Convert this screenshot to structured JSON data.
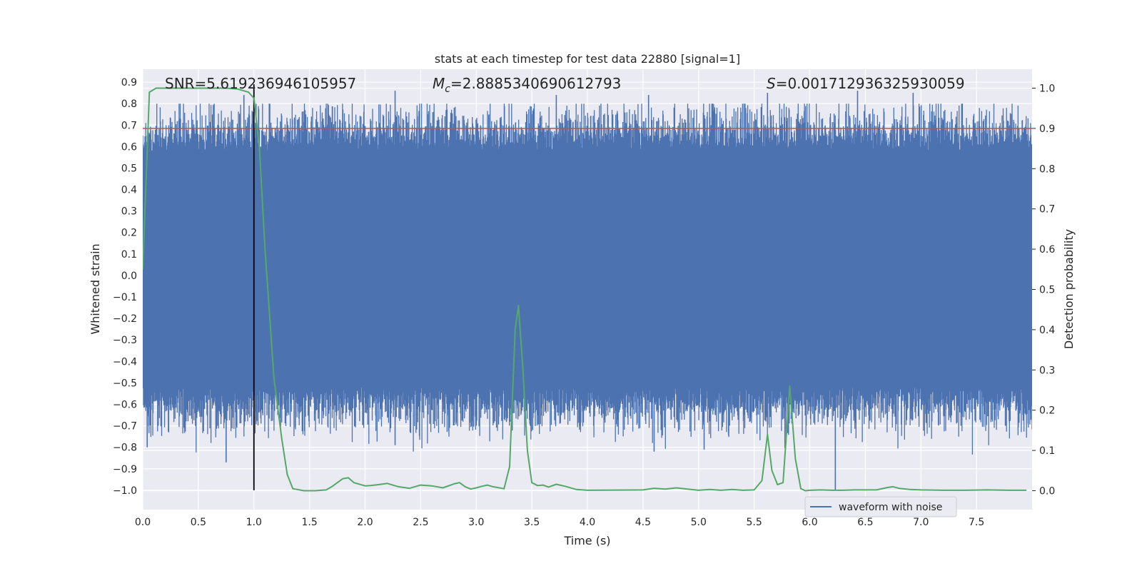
{
  "chart_data": {
    "type": "line",
    "title": "stats at each timestep for test data 22880 [signal=1]",
    "xlabel": "Time (s)",
    "ylabel": "Whitened strain",
    "y2label": "Detection probability",
    "xlim": [
      0.0,
      8.0
    ],
    "ylim": [
      -1.09,
      0.96
    ],
    "y2lim": [
      -0.047,
      1.047
    ],
    "xticks": [
      0.0,
      0.5,
      1.0,
      1.5,
      2.0,
      2.5,
      3.0,
      3.5,
      4.0,
      4.5,
      5.0,
      5.5,
      6.0,
      6.5,
      7.0,
      7.5
    ],
    "xtick_labels": [
      "0.0",
      "0.5",
      "1.0",
      "1.5",
      "2.0",
      "2.5",
      "3.0",
      "3.5",
      "4.0",
      "4.5",
      "5.0",
      "5.5",
      "6.0",
      "6.5",
      "7.0",
      "7.5"
    ],
    "yticks": [
      0.9,
      0.8,
      0.7,
      0.6,
      0.5,
      0.4,
      0.3,
      0.2,
      0.1,
      0.0,
      -0.1,
      -0.2,
      -0.3,
      -0.4,
      -0.5,
      -0.6,
      -0.7,
      -0.8,
      -0.9,
      -1.0
    ],
    "ytick_labels": [
      "0.9",
      "0.8",
      "0.7",
      "0.6",
      "0.5",
      "0.4",
      "0.3",
      "0.2",
      "0.1",
      "0.0",
      "−0.1",
      "−0.2",
      "−0.3",
      "−0.4",
      "−0.5",
      "−0.6",
      "−0.7",
      "−0.8",
      "−0.9",
      "−1.0"
    ],
    "y2ticks": [
      1.0,
      0.9,
      0.8,
      0.7,
      0.6,
      0.5,
      0.4,
      0.3,
      0.2,
      0.1,
      0.0
    ],
    "y2tick_labels": [
      "1.0",
      "0.9",
      "0.8",
      "0.7",
      "0.6",
      "0.5",
      "0.4",
      "0.3",
      "0.2",
      "0.1",
      "0.0"
    ],
    "grid": true,
    "legend_position": "bottom-right",
    "annotations": {
      "snr": "SNR=5.619236946105957",
      "mc_symbol": "M",
      "mc_sub": "c",
      "mc_value": "=2.8885340690612793",
      "s_symbol": "S",
      "s_value": "=0.001712936325930059"
    },
    "series": [
      {
        "name": "waveform with noise",
        "axis": "left",
        "color": "#4c72b0",
        "band": {
          "core_low": -0.52,
          "core_high": 0.58,
          "amplitude_sigma": 0.19
        },
        "spikes": [
          {
            "x": 0.75,
            "y": -0.87
          },
          {
            "x": 0.91,
            "y": 0.84
          },
          {
            "x": 0.92,
            "y": -0.68
          },
          {
            "x": 1.0,
            "y": 0.82
          },
          {
            "x": 2.27,
            "y": 0.86
          },
          {
            "x": 2.27,
            "y": -0.79
          },
          {
            "x": 3.72,
            "y": 0.84
          },
          {
            "x": 4.55,
            "y": 0.84
          },
          {
            "x": 4.6,
            "y": -0.82
          },
          {
            "x": 5.05,
            "y": -0.81
          },
          {
            "x": 5.62,
            "y": 0.85
          },
          {
            "x": 6.23,
            "y": -1.0
          },
          {
            "x": 6.43,
            "y": 0.86
          },
          {
            "x": 6.93,
            "y": 0.85
          },
          {
            "x": 7.8,
            "y": 0.7
          },
          {
            "x": 7.76,
            "y": -0.7
          },
          {
            "x": 0.04,
            "y": -0.8
          }
        ]
      },
      {
        "name": "",
        "axis": "right",
        "color": "#55a868",
        "x": [
          0.0,
          0.06,
          0.12,
          0.2,
          0.4,
          0.6,
          0.75,
          0.85,
          0.95,
          1.0,
          1.05,
          1.1,
          1.18,
          1.25,
          1.3,
          1.35,
          1.45,
          1.55,
          1.65,
          1.7,
          1.8,
          1.85,
          1.9,
          2.0,
          2.05,
          2.12,
          2.2,
          2.3,
          2.4,
          2.5,
          2.6,
          2.7,
          2.8,
          2.85,
          2.9,
          2.95,
          3.0,
          3.05,
          3.1,
          3.15,
          3.25,
          3.3,
          3.35,
          3.38,
          3.42,
          3.46,
          3.5,
          3.55,
          3.6,
          3.65,
          3.72,
          3.8,
          3.9,
          4.0,
          4.5,
          4.6,
          4.7,
          4.8,
          4.9,
          5.0,
          5.1,
          5.2,
          5.3,
          5.4,
          5.5,
          5.57,
          5.62,
          5.66,
          5.71,
          5.76,
          5.82,
          5.87,
          5.92,
          5.96,
          6.0,
          6.1,
          6.2,
          6.3,
          6.4,
          6.5,
          6.6,
          6.7,
          6.75,
          6.8,
          6.9,
          7.0,
          7.2,
          7.4,
          7.6,
          7.8,
          7.95
        ],
        "values": [
          0.55,
          0.99,
          1.0,
          1.0,
          1.0,
          1.0,
          1.0,
          0.998,
          0.99,
          0.975,
          0.85,
          0.6,
          0.28,
          0.13,
          0.04,
          0.005,
          0.0,
          0.0,
          0.002,
          0.01,
          0.03,
          0.032,
          0.02,
          0.012,
          0.013,
          0.015,
          0.018,
          0.01,
          0.006,
          0.014,
          0.012,
          0.007,
          0.017,
          0.02,
          0.01,
          0.004,
          0.007,
          0.011,
          0.014,
          0.01,
          0.005,
          0.06,
          0.4,
          0.46,
          0.3,
          0.1,
          0.02,
          0.013,
          0.014,
          0.009,
          0.016,
          0.011,
          0.003,
          0.001,
          0.002,
          0.006,
          0.004,
          0.007,
          0.004,
          0.001,
          0.003,
          0.001,
          0.003,
          0.001,
          0.002,
          0.025,
          0.14,
          0.05,
          0.015,
          0.02,
          0.26,
          0.08,
          0.005,
          0.0,
          0.001,
          0.002,
          0.001,
          0.001,
          0.002,
          0.002,
          0.002,
          0.008,
          0.01,
          0.006,
          0.003,
          0.002,
          0.001,
          0.001,
          0.002,
          0.001,
          0.001
        ]
      },
      {
        "name": "",
        "axis": "right",
        "color": "#c44e52",
        "kind": "hline",
        "value": 0.9
      },
      {
        "name": "",
        "axis": "left",
        "color": "#000000",
        "kind": "vline",
        "x": 1.0,
        "y_range": [
          -1.0,
          0.89
        ]
      }
    ]
  }
}
